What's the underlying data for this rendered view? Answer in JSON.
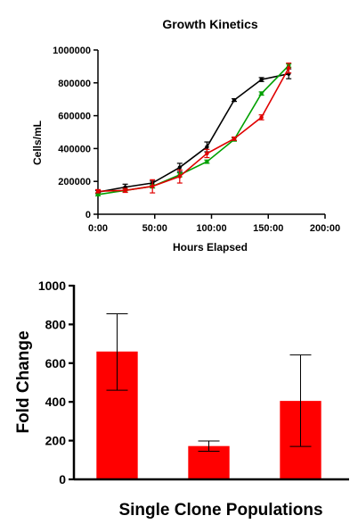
{
  "chart_data": [
    {
      "type": "line",
      "title": "Growth Kinetics",
      "xlabel": "Hours Elapsed",
      "ylabel": "Cells/mL",
      "xlim": [
        0,
        200
      ],
      "ylim": [
        0,
        1000000
      ],
      "x_ticks": [
        0,
        50,
        100,
        150,
        200
      ],
      "x_tick_labels": [
        "0:00",
        "50:00",
        "100:00",
        "150:00",
        "200:00"
      ],
      "y_ticks": [
        0,
        200000,
        400000,
        600000,
        800000,
        1000000
      ],
      "y_tick_labels": [
        "0",
        "200000",
        "400000",
        "600000",
        "800000",
        "1000000"
      ],
      "grid": false,
      "legend": "none",
      "series": [
        {
          "color": "#000000",
          "x": [
            0,
            24,
            48,
            72,
            96,
            120,
            144,
            168
          ],
          "y": [
            135000,
            165000,
            190000,
            285000,
            410000,
            695000,
            820000,
            855000
          ],
          "error": [
            10000,
            18000,
            12000,
            25000,
            30000,
            8000,
            12000,
            30000
          ]
        },
        {
          "color": "#00a000",
          "x": [
            0,
            24,
            48,
            72,
            96,
            120,
            144,
            168
          ],
          "y": [
            120000,
            145000,
            170000,
            240000,
            320000,
            455000,
            735000,
            905000
          ],
          "error": [
            8000,
            10000,
            10000,
            12000,
            10000,
            10000,
            10000,
            10000
          ]
        },
        {
          "color": "#e00000",
          "x": [
            0,
            24,
            48,
            72,
            96,
            120,
            144,
            168
          ],
          "y": [
            140000,
            145000,
            170000,
            230000,
            370000,
            460000,
            590000,
            890000
          ],
          "error": [
            10000,
            12000,
            40000,
            40000,
            25000,
            10000,
            15000,
            30000
          ]
        }
      ]
    },
    {
      "type": "bar",
      "title": "",
      "xlabel": "Single Clone Populations",
      "ylabel": "Fold Change",
      "ylim": [
        0,
        1000
      ],
      "y_ticks": [
        0,
        200,
        400,
        600,
        800,
        1000
      ],
      "y_tick_labels": [
        "0",
        "200",
        "400",
        "600",
        "800",
        "1000"
      ],
      "bar_color": "#ff0000",
      "values": [
        660,
        172,
        405
      ],
      "error_low": [
        460,
        145,
        170
      ],
      "error_high": [
        855,
        198,
        642
      ],
      "legend": "none"
    }
  ]
}
